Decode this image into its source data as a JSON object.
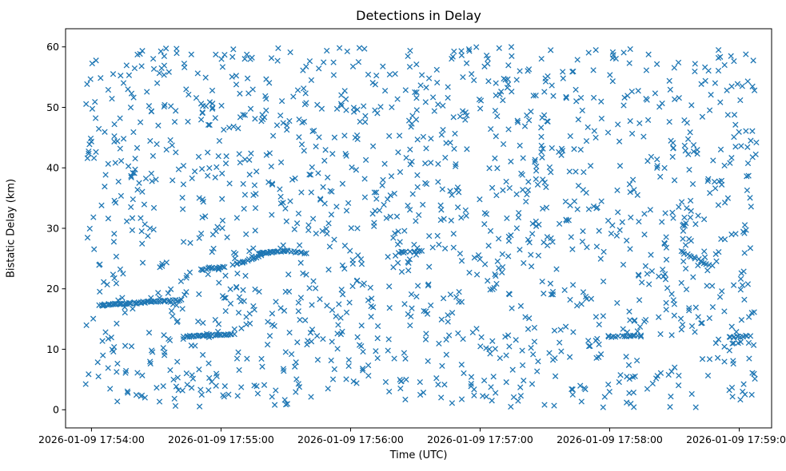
{
  "window": {
    "title": "Detections in Delay"
  },
  "chart_data": {
    "type": "scatter",
    "title": "Detections in Delay",
    "xlabel": "Time (UTC)",
    "ylabel": "Bistatic Delay (km)",
    "marker": "x",
    "marker_color": "#1f77b4",
    "grid": false,
    "legend": "none",
    "x_tick_labels": [
      "2026-01-09 17:54:00",
      "2026-01-09 17:55:00",
      "2026-01-09 17:56:00",
      "2026-01-09 17:57:00",
      "2026-01-09 17:58:00",
      "2026-01-09 17:59:00"
    ],
    "x_tick_seconds": [
      0,
      60,
      120,
      180,
      240,
      300
    ],
    "xlim_seconds": [
      -12,
      315
    ],
    "x_axis_start": "2026-01-09 17:54:00",
    "x_axis_end": "2026-01-09 17:59:00",
    "y_tick_labels": [
      "0",
      "10",
      "20",
      "30",
      "40",
      "50",
      "60"
    ],
    "y_ticks": [
      0,
      10,
      20,
      30,
      40,
      50,
      60
    ],
    "ylim": [
      -3,
      63
    ],
    "background_points": {
      "description": "uniform random detection clutter across full time and delay range",
      "n": 1500,
      "seed": 42,
      "t_range_seconds": [
        -3,
        308
      ],
      "y_range_km": [
        0.4,
        60.0
      ]
    },
    "tracks": [
      {
        "t0": 4,
        "t1": 34,
        "y0": 17.3,
        "y1": 18.0,
        "n": 48
      },
      {
        "t0": 34,
        "t1": 42,
        "y0": 18.0,
        "y1": 18.1,
        "n": 8
      },
      {
        "t0": 43,
        "t1": 66,
        "y0": 12.1,
        "y1": 12.5,
        "n": 34
      },
      {
        "t0": 51,
        "t1": 62,
        "y0": 23.2,
        "y1": 23.6,
        "n": 14
      },
      {
        "t0": 66,
        "t1": 79,
        "y0": 23.9,
        "y1": 25.6,
        "n": 16
      },
      {
        "t0": 77,
        "t1": 90,
        "y0": 25.8,
        "y1": 26.3,
        "n": 26
      },
      {
        "t0": 90,
        "t1": 100,
        "y0": 26.2,
        "y1": 25.9,
        "n": 10
      },
      {
        "t0": 142,
        "t1": 153,
        "y0": 26.0,
        "y1": 26.2,
        "n": 12
      },
      {
        "t0": 240,
        "t1": 255,
        "y0": 12.1,
        "y1": 12.2,
        "n": 15
      },
      {
        "t0": 273,
        "t1": 287,
        "y0": 26.2,
        "y1": 23.8,
        "n": 15
      },
      {
        "t0": 295,
        "t1": 305,
        "y0": 12.0,
        "y1": 12.2,
        "n": 12
      }
    ],
    "track_jitter_km": 0.24,
    "track_jitter_s": 1.2,
    "axes_color": "#000000",
    "background_color": "#ffffff"
  }
}
